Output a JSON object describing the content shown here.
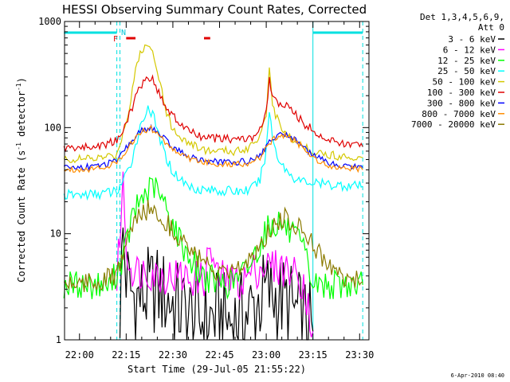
{
  "chart_data": {
    "type": "line",
    "title": "HESSI Observing Summary Count Rates, Corrected",
    "xlabel": "Start Time (29-Jul-05 21:55:22)",
    "ylabel_main": "Corrected Count Rate (s",
    "ylabel_sup1": "-1",
    "ylabel_mid": " detector",
    "ylabel_sup2": "-1",
    "ylabel_end": ")",
    "yscale": "log",
    "ylim": [
      1,
      1000
    ],
    "xlim_minutes": [
      21.92,
      23.55
    ],
    "x_ticks": [
      "22:00",
      "22:15",
      "22:30",
      "22:45",
      "23:00",
      "23:15",
      "23:30"
    ],
    "y_ticks": [
      "1",
      "10",
      "100",
      "1000"
    ],
    "legend_header": [
      "Det 1,3,4,5,6,9,",
      "Att 0"
    ],
    "timestamp": "6-Apr-2010 08:40",
    "flags": {
      "flare_label": "F",
      "night_label": "N",
      "flare_color": "#e00000",
      "night_color": "#00e0e0"
    },
    "night_intervals_clock": [
      [
        "21:55",
        "22:12"
      ],
      [
        "23:15",
        "23:31"
      ]
    ],
    "flare_intervals_clock": [
      [
        "22:15",
        "22:18"
      ],
      [
        "22:40",
        "22:42"
      ]
    ],
    "boundaries_clock": [
      [
        "22:12",
        "dashed"
      ],
      [
        "22:13",
        "dashed"
      ],
      [
        "23:15",
        "solid"
      ],
      [
        "23:31",
        "dashed"
      ]
    ],
    "series": [
      {
        "name": "3 - 6 keV",
        "color": "#000000",
        "x": [
          "22:13",
          "22:14",
          "22:15",
          "22:16",
          "22:18",
          "22:20",
          "22:24",
          "22:28",
          "22:32",
          "22:36",
          "22:40",
          "22:44",
          "22:48",
          "22:52",
          "22:56",
          "23:00",
          "23:04",
          "23:08",
          "23:12",
          "23:15"
        ],
        "y": [
          2.0,
          10,
          4,
          3,
          2.5,
          2.5,
          3,
          2.5,
          2,
          1.6,
          1.5,
          1.7,
          1.5,
          1.6,
          2,
          2.8,
          2.5,
          2,
          1.5,
          1.2
        ]
      },
      {
        "name": "6 - 12 keV",
        "color": "#ff00ff",
        "x": [
          "22:12",
          "22:14",
          "22:15",
          "22:16",
          "22:18",
          "22:22",
          "22:26",
          "22:30",
          "22:36",
          "22:40",
          "22:42",
          "22:44",
          "22:48",
          "22:52",
          "22:56",
          "23:00",
          "23:04",
          "23:08",
          "23:12",
          "23:15"
        ],
        "y": [
          3.5,
          30,
          8,
          5,
          4.5,
          4.5,
          4,
          4,
          3.8,
          3.7,
          7.5,
          4,
          3.6,
          3.5,
          4.5,
          5,
          4.8,
          4.5,
          3.5,
          1.2
        ]
      },
      {
        "name": "12 - 25 keV",
        "color": "#00ff00",
        "x": [
          "21:55",
          "22:00",
          "22:05",
          "22:10",
          "22:14",
          "22:17",
          "22:20",
          "22:24",
          "22:28",
          "22:32",
          "22:36",
          "22:40",
          "22:44",
          "22:48",
          "22:52",
          "22:56",
          "23:00",
          "23:04",
          "23:08",
          "23:12",
          "23:15",
          "23:20",
          "23:25",
          "23:31"
        ],
        "y": [
          3.3,
          3.3,
          3.3,
          3.3,
          6,
          14,
          22,
          28,
          17,
          9,
          5.5,
          4,
          3.5,
          3.4,
          4,
          6,
          11,
          13,
          10,
          7,
          3.3,
          3.3,
          3.3,
          3.3
        ]
      },
      {
        "name": "25 - 50 keV",
        "color": "#00ffff",
        "x": [
          "21:55",
          "22:05",
          "22:12",
          "22:16",
          "22:19",
          "22:22",
          "22:24",
          "22:27",
          "22:30",
          "22:35",
          "22:40",
          "22:45",
          "22:50",
          "22:55",
          "22:58",
          "23:00",
          "23:01",
          "23:02",
          "23:04",
          "23:07",
          "23:10",
          "23:15",
          "23:20",
          "23:31"
        ],
        "y": [
          23,
          23.5,
          25,
          40,
          90,
          160,
          120,
          60,
          38,
          28,
          26,
          25.5,
          25,
          26,
          32,
          60,
          150,
          80,
          50,
          38,
          32,
          30,
          29,
          28
        ]
      },
      {
        "name": "50 - 100 keV",
        "color": "#d4c800",
        "x": [
          "21:55",
          "22:05",
          "22:12",
          "22:16",
          "22:18",
          "22:20",
          "22:22",
          "22:24",
          "22:26",
          "22:28",
          "22:30",
          "22:34",
          "22:38",
          "22:42",
          "22:46",
          "22:50",
          "22:54",
          "22:58",
          "23:00",
          "23:01",
          "23:02",
          "23:04",
          "23:08",
          "23:12",
          "23:20",
          "23:31"
        ],
        "y": [
          50,
          51,
          55,
          150,
          360,
          540,
          600,
          480,
          260,
          140,
          95,
          75,
          65,
          60,
          60,
          60,
          64,
          85,
          140,
          340,
          160,
          110,
          80,
          65,
          55,
          52
        ]
      },
      {
        "name": "100 - 300 keV",
        "color": "#e00000",
        "x": [
          "21:55",
          "22:05",
          "22:12",
          "22:16",
          "22:19",
          "22:21",
          "22:23",
          "22:25",
          "22:28",
          "22:32",
          "22:36",
          "22:40",
          "22:46",
          "22:52",
          "22:56",
          "22:58",
          "23:00",
          "23:01",
          "23:02",
          "23:04",
          "23:08",
          "23:12",
          "23:20",
          "23:31"
        ],
        "y": [
          64,
          66,
          75,
          130,
          230,
          290,
          300,
          230,
          150,
          110,
          90,
          80,
          78,
          78,
          80,
          95,
          140,
          280,
          190,
          170,
          150,
          110,
          75,
          66
        ]
      },
      {
        "name": "300 - 800 keV",
        "color": "#0000ff",
        "x": [
          "21:55",
          "22:05",
          "22:12",
          "22:16",
          "22:20",
          "22:23",
          "22:26",
          "22:30",
          "22:36",
          "22:42",
          "22:48",
          "22:54",
          "22:58",
          "23:02",
          "23:06",
          "23:10",
          "23:15",
          "23:20",
          "23:31"
        ],
        "y": [
          42,
          43,
          48,
          70,
          95,
          100,
          85,
          65,
          52,
          48,
          47,
          48,
          55,
          80,
          88,
          75,
          55,
          46,
          42
        ]
      },
      {
        "name": "800 - 7000 keV",
        "color": "#ff8c00",
        "x": [
          "21:55",
          "22:05",
          "22:12",
          "22:16",
          "22:20",
          "22:23",
          "22:26",
          "22:30",
          "22:36",
          "22:42",
          "22:48",
          "22:54",
          "22:58",
          "23:02",
          "23:06",
          "23:10",
          "23:15",
          "23:20",
          "23:31"
        ],
        "y": [
          40,
          41,
          46,
          68,
          92,
          98,
          82,
          62,
          50,
          46,
          45,
          46,
          52,
          77,
          85,
          72,
          52,
          44,
          40
        ]
      },
      {
        "name": "7000 - 20000 keV",
        "color": "#8b7a00",
        "x": [
          "21:55",
          "22:05",
          "22:12",
          "22:16",
          "22:20",
          "22:23",
          "22:26",
          "22:30",
          "22:34",
          "22:38",
          "22:42",
          "22:46",
          "22:50",
          "22:54",
          "22:58",
          "23:02",
          "23:06",
          "23:10",
          "23:14",
          "23:18",
          "23:22",
          "23:31"
        ],
        "y": [
          3.5,
          3.5,
          4,
          10,
          16,
          17,
          15,
          11,
          8,
          6,
          4.5,
          4,
          4.2,
          5.5,
          8,
          12,
          14,
          12,
          9,
          6,
          4.2,
          3.5
        ]
      }
    ]
  }
}
